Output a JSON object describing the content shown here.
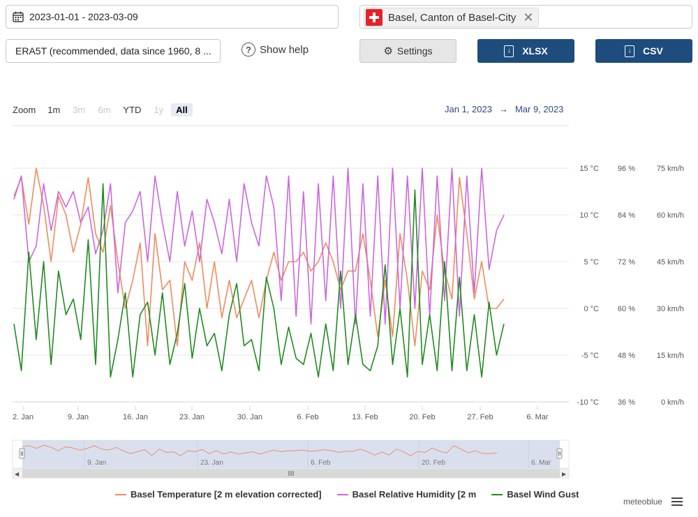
{
  "controls": {
    "date_range": "2023-01-01 - 2023-03-09",
    "location": "Basel, Canton of Basel-City",
    "dataset": "ERA5T (recommended, data since 1960, 8 ...",
    "help": "Show help",
    "settings": "Settings",
    "xlsx": "XLSX",
    "csv": "CSV"
  },
  "zoom": {
    "label": "Zoom",
    "buttons": [
      {
        "label": "1m",
        "state": "normal"
      },
      {
        "label": "3m",
        "state": "disabled"
      },
      {
        "label": "6m",
        "state": "disabled"
      },
      {
        "label": "YTD",
        "state": "normal"
      },
      {
        "label": "1y",
        "state": "disabled"
      },
      {
        "label": "All",
        "state": "selected"
      }
    ],
    "from": "Jan 1, 2023",
    "arrow": "→",
    "to": "Mar 9, 2023"
  },
  "brand": "meteoblue",
  "colors": {
    "temperature": "#f08a5d",
    "humidity": "#cc66dd",
    "wind": "#1f8a1f",
    "axis_text": "#555555",
    "navigator_fill": "#d3d9ea"
  },
  "chart_data": {
    "type": "line",
    "x_tick_labels": [
      "2. Jan",
      "9. Jan",
      "16. Jan",
      "23. Jan",
      "30. Jan",
      "6. Feb",
      "13. Feb",
      "20. Feb",
      "27. Feb",
      "6. Mar"
    ],
    "navigator_tick_labels": [
      "9. Jan",
      "23. Jan",
      "6. Feb",
      "20. Feb",
      "6. Mar"
    ],
    "x_range_days": [
      0,
      68
    ],
    "axes": [
      {
        "name": "temperature",
        "unit": "°C",
        "ticks": [
          "-10 °C",
          "-5 °C",
          "0 °C",
          "5 °C",
          "10 °C",
          "15 °C"
        ],
        "values": [
          -10,
          -5,
          0,
          5,
          10,
          15
        ]
      },
      {
        "name": "humidity",
        "unit": "%",
        "ticks": [
          "36 %",
          "48 %",
          "60 %",
          "72 %",
          "84 %",
          "96 %"
        ],
        "values": [
          36,
          48,
          60,
          72,
          84,
          96
        ]
      },
      {
        "name": "wind",
        "unit": "km/h",
        "ticks": [
          "0 km/h",
          "15 km/h",
          "30 km/h",
          "45 km/h",
          "60 km/h",
          "75 km/h"
        ],
        "values": [
          0,
          15,
          30,
          45,
          60,
          75
        ]
      }
    ],
    "grid": true,
    "legend_position": "bottom",
    "series": [
      {
        "name": "Basel Temperature [2 m elevation corrected]",
        "axis": "temperature",
        "color": "#f08a5d",
        "values": [
          12,
          14,
          9,
          15,
          11,
          5,
          12,
          10,
          6,
          9,
          14,
          8,
          6,
          11,
          5,
          0,
          3,
          7,
          -4,
          8,
          2,
          3,
          -4,
          5,
          3,
          7,
          0,
          5,
          -1,
          3,
          -1,
          1,
          3,
          -1,
          3,
          6,
          3,
          5,
          5,
          6,
          4,
          5,
          7,
          5,
          2,
          4,
          4,
          8,
          3,
          -3,
          3,
          -3,
          8,
          3,
          -4,
          4,
          2,
          10,
          4,
          1,
          14,
          8,
          1,
          5,
          0,
          0,
          1
        ]
      },
      {
        "name": "Basel Relative Humidity [2 m",
        "axis": "humidity",
        "color": "#cc66dd",
        "values": [
          88,
          94,
          72,
          76,
          92,
          80,
          90,
          86,
          90,
          82,
          86,
          74,
          80,
          92,
          64,
          82,
          85,
          90,
          72,
          94,
          82,
          72,
          90,
          76,
          85,
          72,
          88,
          82,
          74,
          88,
          72,
          92,
          82,
          76,
          94,
          86,
          62,
          94,
          58,
          90,
          56,
          92,
          62,
          94,
          60,
          96,
          56,
          92,
          58,
          94,
          56,
          96,
          60,
          94,
          60,
          96,
          58,
          94,
          62,
          96,
          58,
          94,
          64,
          96,
          70,
          80,
          84
        ]
      },
      {
        "name": "Basel Wind Gust",
        "axis": "wind",
        "color": "#1f8a1f",
        "values": [
          25,
          10,
          48,
          20,
          45,
          12,
          42,
          28,
          33,
          20,
          52,
          12,
          70,
          8,
          20,
          35,
          8,
          28,
          32,
          15,
          35,
          12,
          22,
          38,
          14,
          30,
          18,
          22,
          10,
          28,
          38,
          18,
          20,
          10,
          40,
          30,
          12,
          24,
          14,
          12,
          22,
          8,
          25,
          10,
          42,
          12,
          28,
          12,
          10,
          18,
          44,
          12,
          30,
          8,
          68,
          12,
          28,
          10,
          45,
          10,
          40,
          10,
          28,
          8,
          32,
          15,
          25
        ]
      }
    ]
  }
}
